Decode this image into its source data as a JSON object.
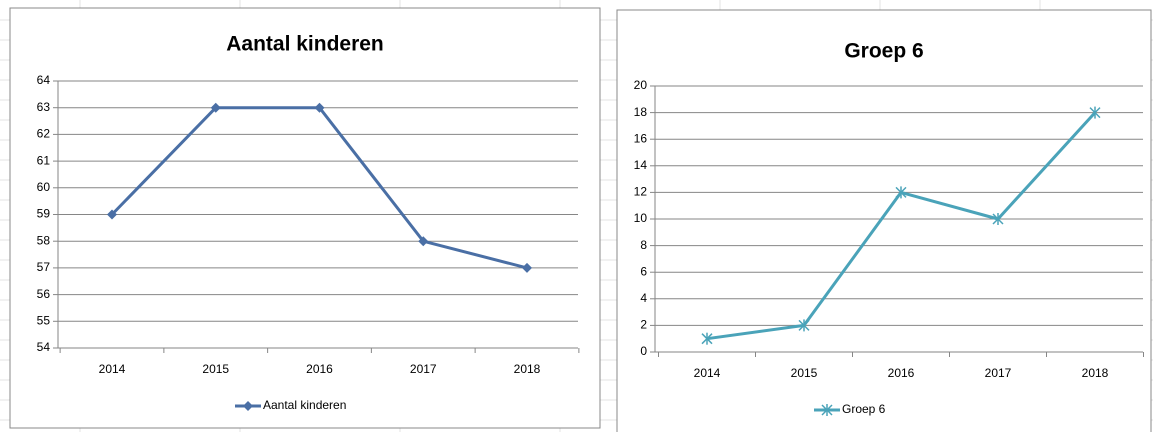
{
  "chart_data": [
    {
      "type": "line",
      "title": "Aantal kinderen",
      "categories": [
        "2014",
        "2015",
        "2016",
        "2017",
        "2018"
      ],
      "series": [
        {
          "name": "Aantal kinderen",
          "color": "#4a6fa5",
          "marker": "diamond",
          "values": [
            59,
            63,
            63,
            58,
            57
          ]
        }
      ],
      "ylim": [
        54,
        64
      ],
      "yticks": [
        54,
        55,
        56,
        57,
        58,
        59,
        60,
        61,
        62,
        63,
        64
      ],
      "grid": true,
      "legend": "bottom"
    },
    {
      "type": "line",
      "title": "Groep 6",
      "categories": [
        "2014",
        "2015",
        "2016",
        "2017",
        "2018"
      ],
      "series": [
        {
          "name": "Groep 6",
          "color": "#4aa3b9",
          "marker": "star",
          "values": [
            1,
            2,
            12,
            10,
            18
          ]
        }
      ],
      "ylim": [
        0,
        20
      ],
      "yticks": [
        0,
        2,
        4,
        6,
        8,
        10,
        12,
        14,
        16,
        18,
        20
      ],
      "grid": true,
      "legend": "bottom"
    }
  ]
}
